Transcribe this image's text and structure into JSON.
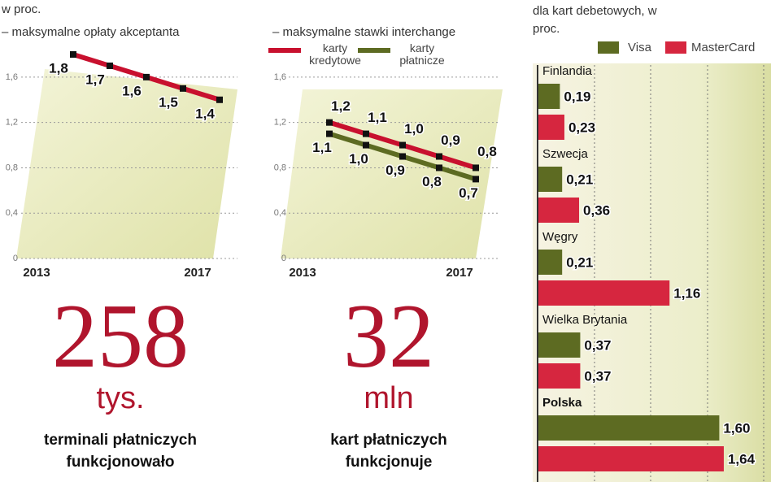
{
  "chart_data": [
    {
      "type": "line",
      "title": "w proc.",
      "subtitle": "– maksymalne opłaty akceptanta",
      "categories": [
        "2013",
        null,
        null,
        null,
        "2017"
      ],
      "series": [
        {
          "color": "#c8102e",
          "values": [
            1.8,
            1.7,
            1.6,
            1.5,
            1.4
          ],
          "value_labels": [
            "1,8",
            "1,7",
            "1,6",
            "1,5",
            "1,4"
          ]
        }
      ],
      "ylim": [
        0,
        1.8
      ],
      "yticks": [
        0,
        {
          "value": 0.4,
          "label": "0,4"
        },
        {
          "value": 0.8,
          "label": "0,8"
        },
        {
          "value": 1.2,
          "label": "1,2"
        },
        {
          "value": 1.6,
          "label": "1,6"
        }
      ],
      "grid": true
    },
    {
      "type": "line",
      "subtitle": "– maksymalne stawki interchange",
      "categories": [
        "2013",
        null,
        null,
        null,
        "2017"
      ],
      "series": [
        {
          "name": "karty kredytowe",
          "color": "#c8102e",
          "values": [
            1.2,
            1.1,
            1.0,
            0.9,
            0.8
          ],
          "value_labels": [
            "1,2",
            "1,1",
            "1,0",
            "0,9",
            "0,8"
          ]
        },
        {
          "name": "karty płatnicze",
          "color": "#5d6b22",
          "values": [
            1.1,
            1.0,
            0.9,
            0.8,
            0.7
          ],
          "value_labels": [
            "1,1",
            "1,0",
            "0,9",
            "0,8",
            "0,7"
          ]
        }
      ],
      "ylim": [
        0,
        1.8
      ],
      "yticks": [
        0,
        {
          "value": 0.4,
          "label": "0,4"
        },
        {
          "value": 0.8,
          "label": "0,8"
        },
        {
          "value": 1.2,
          "label": "1,2"
        },
        {
          "value": 1.6,
          "label": "1,6"
        }
      ],
      "grid": true
    },
    {
      "type": "barh",
      "title": "dla kart debetowych, w proc.",
      "categories": [
        "Finlandia",
        "Szwecja",
        "Węgry",
        "Wielka Brytania",
        "Polska"
      ],
      "series": [
        {
          "name": "Visa",
          "color": "#5d6b22",
          "values": [
            0.19,
            0.21,
            0.21,
            0.37,
            1.6
          ],
          "value_labels": [
            "0,19",
            "0,21",
            "0,21",
            "0,37",
            "1,60"
          ]
        },
        {
          "name": "MasterCard",
          "color": "#d6263f",
          "values": [
            0.23,
            0.36,
            1.16,
            0.37,
            1.64
          ],
          "value_labels": [
            "0,23",
            "0,36",
            "1,16",
            "0,37",
            "1,64"
          ]
        }
      ],
      "xlim": [
        0,
        2
      ]
    }
  ],
  "highlights": [
    {
      "value": "258",
      "unit": "tys.",
      "text": [
        "terminali płatniczych",
        "funkcjonowało"
      ]
    },
    {
      "value": "32",
      "unit": "mln",
      "text": [
        "kart płatniczych",
        "funkcjonuje"
      ]
    }
  ]
}
